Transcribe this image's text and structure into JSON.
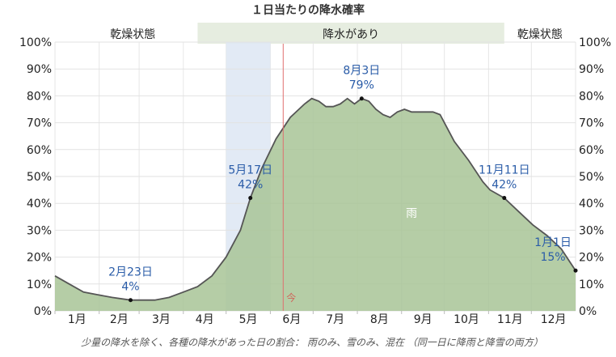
{
  "chart_data": {
    "type": "area",
    "title": "１日当たりの降水確率",
    "seasons": [
      {
        "label": "乾燥状態",
        "kind": "dry"
      },
      {
        "label": "降水があり",
        "kind": "wet"
      },
      {
        "label": "乾燥状態",
        "kind": "dry"
      }
    ],
    "wet_season": {
      "start_day": 100,
      "end_day": 315
    },
    "months": [
      "1月",
      "2月",
      "3月",
      "4月",
      "5月",
      "6月",
      "7月",
      "8月",
      "9月",
      "10月",
      "11月",
      "12月"
    ],
    "ylim": [
      0,
      100
    ],
    "yticks": [
      "0%",
      "10%",
      "20%",
      "30%",
      "40%",
      "50%",
      "60%",
      "70%",
      "80%",
      "90%",
      "100%"
    ],
    "highlight_month_index": 4,
    "today": {
      "label": "今",
      "day": 160
    },
    "series": [
      {
        "name": "雨",
        "color": "#a8c496",
        "days": [
          0,
          10,
          20,
          30,
          40,
          53,
          60,
          70,
          80,
          90,
          100,
          110,
          120,
          130,
          137,
          145,
          155,
          165,
          175,
          180,
          185,
          190,
          195,
          200,
          205,
          210,
          215,
          220,
          225,
          230,
          235,
          240,
          245,
          250,
          255,
          260,
          265,
          270,
          275,
          280,
          290,
          300,
          305,
          315,
          325,
          335,
          345,
          355,
          365
        ],
        "values": [
          13,
          10,
          7,
          6,
          5,
          4,
          4,
          4,
          5,
          7,
          9,
          13,
          20,
          30,
          42,
          53,
          64,
          72,
          77,
          79,
          78,
          76,
          76,
          77,
          79,
          77,
          79,
          78,
          75,
          73,
          72,
          74,
          75,
          74,
          74,
          74,
          74,
          73,
          68,
          63,
          56,
          48,
          45,
          42,
          37,
          32,
          28,
          23,
          15
        ]
      }
    ],
    "annotations": [
      {
        "label": "2月23日",
        "value_label": "4%",
        "day": 53,
        "value": 4
      },
      {
        "label": "5月17日",
        "value_label": "42%",
        "day": 137,
        "value": 42
      },
      {
        "label": "8月3日",
        "value_label": "79%",
        "day": 215,
        "value": 79
      },
      {
        "label": "11月11日",
        "value_label": "42%",
        "day": 315,
        "value": 42
      },
      {
        "label": "1月1日",
        "value_label": "15%",
        "day": 365,
        "value": 15
      }
    ],
    "caption": "少量の降水を除く、各種の降水があった日の割合： 雨のみ、雪のみ、混在 （同一日に降雨と降雪の両方）"
  }
}
